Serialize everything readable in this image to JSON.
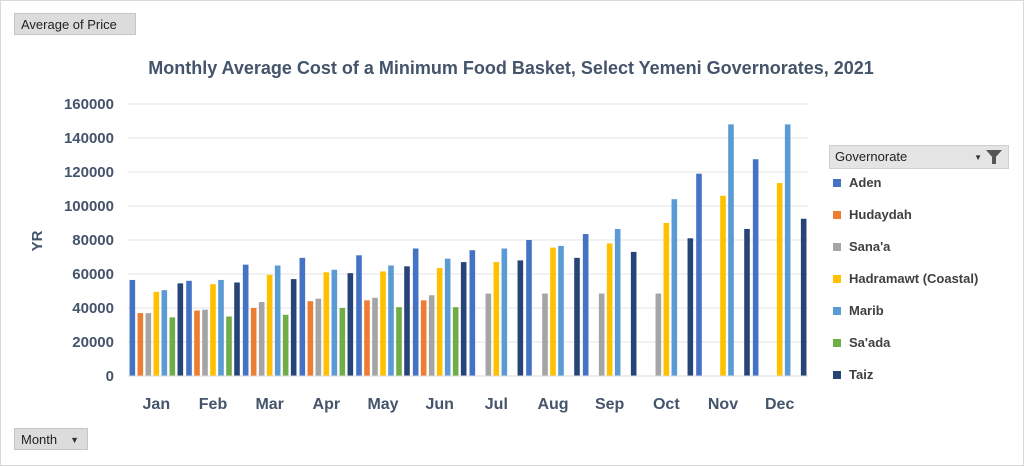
{
  "pivot": {
    "value_field": "Average of Price",
    "axis_field": "Month",
    "legend_field": "Governorate"
  },
  "chart_data": {
    "type": "bar",
    "title": "Monthly Average Cost of a Minimum Food Basket, Select Yemeni Governorates, 2021",
    "xlabel": "",
    "ylabel": "YR",
    "ylim": [
      0,
      160000
    ],
    "yticks": [
      0,
      20000,
      40000,
      60000,
      80000,
      100000,
      120000,
      140000,
      160000
    ],
    "grid": true,
    "legend_position": "right",
    "categories": [
      "Jan",
      "Feb",
      "Mar",
      "Apr",
      "May",
      "Jun",
      "Jul",
      "Aug",
      "Sep",
      "Oct",
      "Nov",
      "Dec"
    ],
    "series": [
      {
        "name": "Aden",
        "color": "#4472c4",
        "values": [
          56500,
          56000,
          65500,
          69500,
          71000,
          75000,
          74000,
          80000,
          83500,
          null,
          119000,
          127500
        ]
      },
      {
        "name": "Hudaydah",
        "color": "#ed7d31",
        "values": [
          37000,
          38500,
          40000,
          44000,
          44500,
          44500,
          null,
          null,
          null,
          null,
          null,
          null
        ]
      },
      {
        "name": "Sana'a",
        "color": "#a5a5a5",
        "values": [
          37000,
          39000,
          43500,
          45500,
          46000,
          47500,
          48500,
          48500,
          48500,
          48500,
          null,
          null
        ]
      },
      {
        "name": "Hadramawt (Coastal)",
        "color": "#ffc000",
        "values": [
          49500,
          54000,
          59500,
          61000,
          61500,
          63500,
          67000,
          75500,
          78000,
          90000,
          106000,
          113500
        ]
      },
      {
        "name": "Marib",
        "color": "#5b9bd5",
        "values": [
          50500,
          56500,
          65000,
          62500,
          65000,
          69000,
          75000,
          76500,
          86500,
          104000,
          148000,
          148000
        ]
      },
      {
        "name": "Sa'ada",
        "color": "#70ad47",
        "values": [
          34500,
          35000,
          36000,
          40000,
          40500,
          40500,
          null,
          null,
          null,
          null,
          null,
          null
        ]
      },
      {
        "name": "Taiz",
        "color": "#264478",
        "values": [
          54500,
          55000,
          57000,
          60500,
          64500,
          67000,
          68000,
          69500,
          73000,
          81000,
          86500,
          92500
        ]
      }
    ]
  }
}
